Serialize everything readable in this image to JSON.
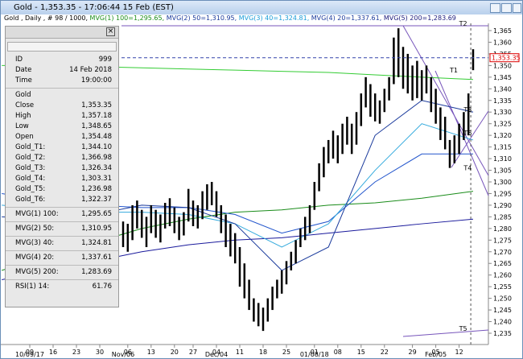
{
  "window_title": "Gold - 1,353.35 - 17:06:44  15 Feb (EST)",
  "header": [
    {
      "text": "Gold , Daily , # 98 / 1000, ",
      "color": "#000000"
    },
    {
      "text": "MVG(1) 100=1,295.65, ",
      "color": "#1a8c1a"
    },
    {
      "text": "MVG(2) 50=1,310.95, ",
      "color": "#1a3a9c"
    },
    {
      "text": "MVG(3) 40=1,324.81, ",
      "color": "#1a9cd8"
    },
    {
      "text": "MVG(4) 20=1,337.61, ",
      "color": "#1a3a9c"
    },
    {
      "text": "MVG(5) 200=1,283.69",
      "color": "#1a1a7c"
    }
  ],
  "data_window": {
    "groups": [
      [
        [
          "ID",
          "999"
        ],
        [
          "Date",
          "14 Feb 2018"
        ],
        [
          "Time",
          "19:00:00"
        ]
      ],
      [
        [
          "Gold",
          ""
        ],
        [
          "Close",
          "1,353.35"
        ],
        [
          "High",
          "1,357.18"
        ],
        [
          "Low",
          "1,348.65"
        ],
        [
          "Open",
          "1,354.48"
        ],
        [
          "Gold_T1:",
          "1,344.10"
        ],
        [
          "Gold_T2:",
          "1,366.98"
        ],
        [
          "Gold_T3:",
          "1,326.34"
        ],
        [
          "Gold_T4:",
          "1,303.31"
        ],
        [
          "Gold_T5:",
          "1,236.98"
        ],
        [
          "Gold_T6:",
          "1,322.37"
        ]
      ],
      [
        [
          "MVG(1) 100:",
          "1,295.65"
        ]
      ],
      [
        [
          "MVG(2) 50:",
          "1,310.95"
        ]
      ],
      [
        [
          "MVG(3) 40:",
          "1,324.81"
        ]
      ],
      [
        [
          "MVG(4) 20:",
          "1,337.61"
        ]
      ],
      [
        [
          "MVG(5) 200:",
          "1,283.69"
        ]
      ],
      [
        [
          "RSI(1) 14:",
          "61.76"
        ]
      ]
    ]
  },
  "chart_data": {
    "type": "ohlc",
    "bar_color": "#000000",
    "current_price": 1353.35,
    "current_label": "1,353.35",
    "high": [
      1283,
      1282,
      1290,
      1292,
      1288,
      1285,
      1290,
      1288,
      1286,
      1291,
      1293,
      1289,
      1285,
      1287,
      1297,
      1292,
      1290,
      1296,
      1299,
      1300,
      1296,
      1290,
      1286,
      1282,
      1278,
      1272,
      1265,
      1258,
      1250,
      1248,
      1246,
      1250,
      1255,
      1258,
      1262,
      1266,
      1270,
      1275,
      1280,
      1285,
      1290,
      1300,
      1308,
      1315,
      1318,
      1322,
      1320,
      1325,
      1328,
      1325,
      1330,
      1338,
      1345,
      1342,
      1338,
      1335,
      1340,
      1345,
      1362,
      1366,
      1358,
      1355,
      1350,
      1352,
      1348,
      1350,
      1345,
      1340,
      1332,
      1328,
      1318,
      1320,
      1325,
      1330,
      1338,
      1357
    ],
    "low": [
      1272,
      1270,
      1275,
      1280,
      1276,
      1272,
      1278,
      1276,
      1274,
      1280,
      1281,
      1278,
      1275,
      1277,
      1283,
      1281,
      1280,
      1284,
      1288,
      1290,
      1285,
      1278,
      1272,
      1268,
      1265,
      1255,
      1250,
      1245,
      1240,
      1238,
      1236,
      1240,
      1245,
      1250,
      1252,
      1256,
      1262,
      1265,
      1272,
      1275,
      1278,
      1288,
      1296,
      1302,
      1308,
      1310,
      1308,
      1312,
      1316,
      1312,
      1316,
      1324,
      1332,
      1328,
      1326,
      1325,
      1330,
      1335,
      1342,
      1345,
      1340,
      1338,
      1335,
      1336,
      1335,
      1338,
      1330,
      1325,
      1318,
      1314,
      1306,
      1308,
      1312,
      1318,
      1320,
      1348
    ],
    "ma_x": [
      -26,
      -16,
      -6,
      4,
      14,
      24,
      34,
      44,
      54,
      64,
      75
    ],
    "series": [
      {
        "color": "#33cc33",
        "values": [
          1350,
          1350,
          1349.5,
          1349,
          1348.5,
          1348,
          1347.5,
          1347,
          1346,
          1345,
          1344
        ]
      },
      {
        "color": "#1a8c1a",
        "values": [
          1262,
          1268,
          1274,
          1280,
          1284,
          1287,
          1288,
          1290,
          1291,
          1293,
          1296
        ]
      },
      {
        "color": "#1a1a9c",
        "values": [
          1258,
          1262,
          1266,
          1270,
          1273,
          1275,
          1276,
          1278,
          1280,
          1282,
          1284
        ]
      },
      {
        "color": "#2255cc",
        "values": [
          1295,
          1292,
          1290,
          1289,
          1289,
          1286,
          1278,
          1283,
          1300,
          1312,
          1312
        ]
      },
      {
        "color": "#33aadd",
        "values": [
          1290,
          1288,
          1287,
          1287,
          1286,
          1282,
          1272,
          1282,
          1305,
          1325,
          1318
        ]
      },
      {
        "color": "#1a3a9c",
        "values": [
          1285,
          1284,
          1286,
          1290,
          1289,
          1282,
          1262,
          1272,
          1320,
          1335,
          1330
        ]
      }
    ],
    "ylim": [
      1235,
      1365
    ],
    "yticks": [
      {
        "value": 1235,
        "label": "1,235"
      },
      {
        "value": 1240,
        "label": "1,240"
      },
      {
        "value": 1245,
        "label": "1,245"
      },
      {
        "value": 1250,
        "label": "1,250"
      },
      {
        "value": 1255,
        "label": "1,255"
      },
      {
        "value": 1260,
        "label": "1,260"
      },
      {
        "value": 1265,
        "label": "1,265"
      },
      {
        "value": 1270,
        "label": "1,270"
      },
      {
        "value": 1275,
        "label": "1,275"
      },
      {
        "value": 1280,
        "label": "1,280"
      },
      {
        "value": 1285,
        "label": "1,285"
      },
      {
        "value": 1290,
        "label": "1,290"
      },
      {
        "value": 1295,
        "label": "1,295"
      },
      {
        "value": 1300,
        "label": "1,300"
      },
      {
        "value": 1305,
        "label": "1,305"
      },
      {
        "value": 1310,
        "label": "1,310"
      },
      {
        "value": 1315,
        "label": "1,315"
      },
      {
        "value": 1320,
        "label": "1,320"
      },
      {
        "value": 1325,
        "label": "1,325"
      },
      {
        "value": 1330,
        "label": "1,330"
      },
      {
        "value": 1335,
        "label": "1,335"
      },
      {
        "value": 1340,
        "label": "1,340"
      },
      {
        "value": 1345,
        "label": "1,345"
      },
      {
        "value": 1350,
        "label": "1,350"
      },
      {
        "value": 1355,
        "label": "1,355"
      },
      {
        "value": 1360,
        "label": "1,360"
      },
      {
        "value": 1365,
        "label": "1,365"
      }
    ],
    "xticks": [
      {
        "value": -20,
        "label": "09"
      },
      {
        "value": -15,
        "label": "16"
      },
      {
        "value": -10,
        "label": "23"
      },
      {
        "value": -5,
        "label": "30"
      },
      {
        "value": 1,
        "label": "06"
      },
      {
        "value": 6,
        "label": "13"
      },
      {
        "value": 11,
        "label": "20"
      },
      {
        "value": 15,
        "label": "27"
      },
      {
        "value": 20,
        "label": "04"
      },
      {
        "value": 25,
        "label": "11"
      },
      {
        "value": 30,
        "label": "18"
      },
      {
        "value": 35,
        "label": "25"
      },
      {
        "value": 41,
        "label": "01"
      },
      {
        "value": 46,
        "label": "08"
      },
      {
        "value": 51,
        "label": "15"
      },
      {
        "value": 56,
        "label": "22"
      },
      {
        "value": 62,
        "label": "29"
      },
      {
        "value": 67,
        "label": "05"
      },
      {
        "value": 72,
        "label": "12"
      }
    ],
    "xticks2": [
      {
        "value": -20,
        "label": "10/09/17"
      },
      {
        "value": 0,
        "label": "Nov/06"
      },
      {
        "value": 20,
        "label": "Dec/04"
      },
      {
        "value": 41,
        "label": "01/08/18"
      },
      {
        "value": 67,
        "label": "Feb/05"
      }
    ],
    "annotations": [
      {
        "text": "T1",
        "x": 70,
        "y": 1347
      },
      {
        "text": "T2",
        "x": 72,
        "y": 1367
      },
      {
        "text": "T3",
        "x": 73,
        "y": 1330
      },
      {
        "text": "T4",
        "x": 73,
        "y": 1305
      },
      {
        "text": "T5",
        "x": 72,
        "y": 1236
      },
      {
        "text": "T6",
        "x": 73,
        "y": 1320
      }
    ]
  }
}
